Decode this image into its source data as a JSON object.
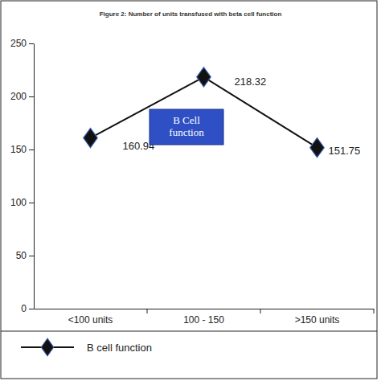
{
  "chart_data": {
    "type": "line",
    "title": "Figure 2: Number of units transfused with beta cell function",
    "categories": [
      "<100 units",
      "100 - 150",
      ">150 units"
    ],
    "series": [
      {
        "name": "B cell function",
        "color": "#111111",
        "marker": "diamond",
        "values": [
          160.94,
          218.32,
          151.75
        ]
      }
    ],
    "ylim": [
      0,
      250
    ],
    "yticks": [
      0,
      50,
      100,
      150,
      200,
      250
    ],
    "annotation": "B Cell function",
    "data_labels": true,
    "grid": false,
    "legend": "bottom-left"
  }
}
